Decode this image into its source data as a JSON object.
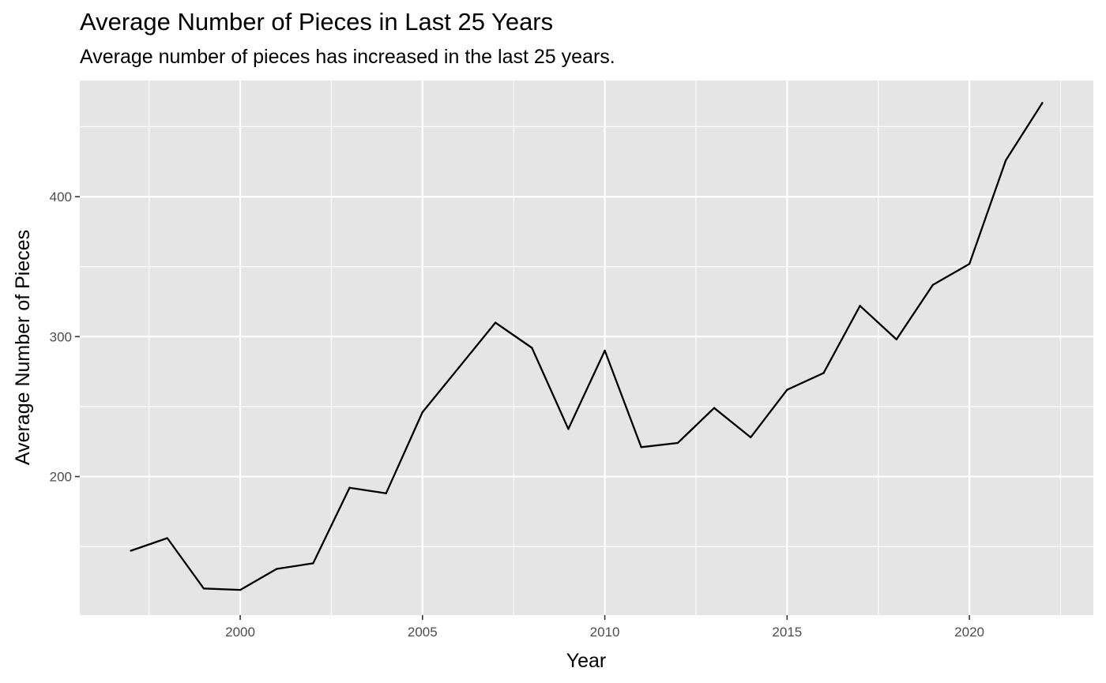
{
  "chart_data": {
    "type": "line",
    "title": "Average Number of Pieces in Last 25 Years",
    "subtitle": "Average number of pieces has increased in the last 25 years.",
    "xlabel": "Year",
    "ylabel": "Average Number of Pieces",
    "xlim": [
      1995.6,
      2023.4
    ],
    "ylim": [
      101,
      483
    ],
    "xticks": [
      2000,
      2005,
      2010,
      2015,
      2020
    ],
    "yticks": [
      200,
      300,
      400
    ],
    "grid": true,
    "legend": "none",
    "colors": {
      "panel": "#e5e5e5",
      "grid": "#ffffff",
      "line": "#000000",
      "tick_text": "#4d4d4d"
    },
    "series": [
      {
        "x": [
          1997,
          1998,
          1999,
          2000,
          2001,
          2002,
          2003,
          2004,
          2005,
          2006,
          2007,
          2008,
          2009,
          2010,
          2011,
          2012,
          2013,
          2014,
          2015,
          2016,
          2017,
          2018,
          2019,
          2020,
          2021,
          2022
        ],
        "values": [
          147,
          156,
          120,
          119,
          134,
          138,
          192,
          188,
          246,
          278,
          310,
          292,
          234,
          290,
          221,
          224,
          249,
          228,
          262,
          274,
          322,
          298,
          337,
          352,
          426,
          467
        ]
      }
    ]
  }
}
